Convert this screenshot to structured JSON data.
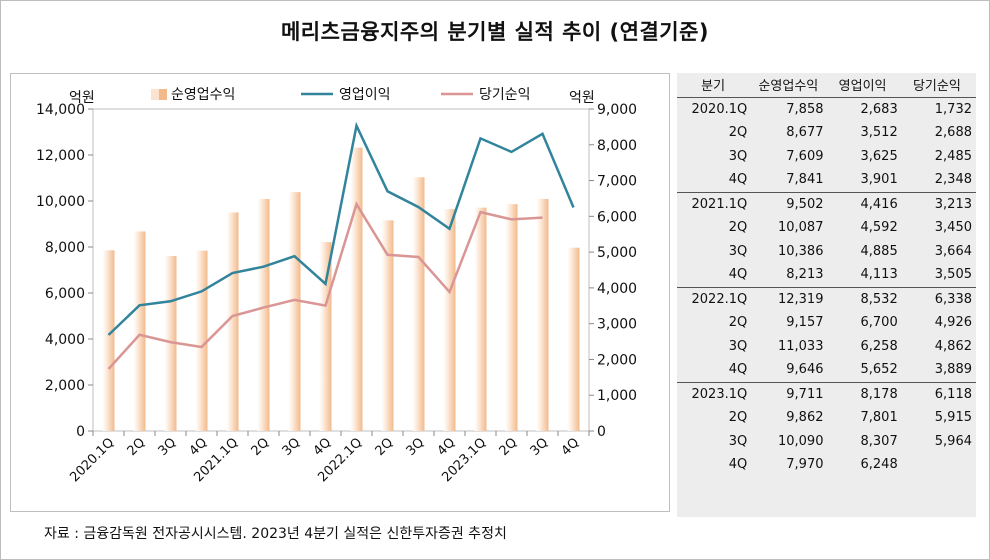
{
  "title": "메리츠금융지주의 분기별 실적 추이 (연결기준)",
  "source": "자료 : 금융감독원 전자공시시스템. 2023년 4분기 실적은 신한투자증권 추정치",
  "colors": {
    "bar": "#f5c8a0",
    "op_line": "#31849b",
    "net_line": "#d99694"
  },
  "chart_data": {
    "type": "bar+line",
    "categories": [
      "2020.1Q",
      "2Q",
      "3Q",
      "4Q",
      "2021.1Q",
      "2Q",
      "3Q",
      "4Q",
      "2022.1Q",
      "2Q",
      "3Q",
      "4Q",
      "2023.1Q",
      "2Q",
      "3Q",
      "4Q"
    ],
    "left_unit": "억원",
    "right_unit": "억원",
    "left_ylim": [
      0,
      14000
    ],
    "left_ticks": [
      "0",
      "2,000",
      "4,000",
      "6,000",
      "8,000",
      "10,000",
      "12,000",
      "14,000"
    ],
    "right_ylim": [
      0,
      9000
    ],
    "right_ticks": [
      "0",
      "1,000",
      "2,000",
      "3,000",
      "4,000",
      "5,000",
      "6,000",
      "7,000",
      "8,000",
      "9,000"
    ],
    "legend_position": "top",
    "series": [
      {
        "name": "순영업수익",
        "type": "bar",
        "axis": "left",
        "values": [
          7858,
          8677,
          7609,
          7841,
          9502,
          10087,
          10386,
          8213,
          12319,
          9157,
          11033,
          9646,
          9711,
          9862,
          10090,
          7970
        ]
      },
      {
        "name": "영업이익",
        "type": "line",
        "axis": "right",
        "values": [
          2683,
          3512,
          3625,
          3901,
          4416,
          4592,
          4885,
          4113,
          8532,
          6700,
          6258,
          5652,
          8178,
          7801,
          8307,
          6248
        ]
      },
      {
        "name": "당기순익",
        "type": "line",
        "axis": "right",
        "values": [
          1732,
          2688,
          2485,
          2348,
          3213,
          3450,
          3664,
          3505,
          6338,
          4926,
          4862,
          3889,
          6118,
          5915,
          5964,
          null
        ]
      }
    ]
  },
  "table": {
    "headers": [
      "분기",
      "순영업수익",
      "영업이익",
      "당기순익"
    ],
    "rows": [
      [
        "2020.1Q",
        "7,858",
        "2,683",
        "1,732"
      ],
      [
        "2Q",
        "8,677",
        "3,512",
        "2,688"
      ],
      [
        "3Q",
        "7,609",
        "3,625",
        "2,485"
      ],
      [
        "4Q",
        "7,841",
        "3,901",
        "2,348"
      ],
      [
        "2021.1Q",
        "9,502",
        "4,416",
        "3,213"
      ],
      [
        "2Q",
        "10,087",
        "4,592",
        "3,450"
      ],
      [
        "3Q",
        "10,386",
        "4,885",
        "3,664"
      ],
      [
        "4Q",
        "8,213",
        "4,113",
        "3,505"
      ],
      [
        "2022.1Q",
        "12,319",
        "8,532",
        "6,338"
      ],
      [
        "2Q",
        "9,157",
        "6,700",
        "4,926"
      ],
      [
        "3Q",
        "11,033",
        "6,258",
        "4,862"
      ],
      [
        "4Q",
        "9,646",
        "5,652",
        "3,889"
      ],
      [
        "2023.1Q",
        "9,711",
        "8,178",
        "6,118"
      ],
      [
        "2Q",
        "9,862",
        "7,801",
        "5,915"
      ],
      [
        "3Q",
        "10,090",
        "8,307",
        "5,964"
      ],
      [
        "4Q",
        "7,970",
        "6,248",
        ""
      ]
    ]
  }
}
